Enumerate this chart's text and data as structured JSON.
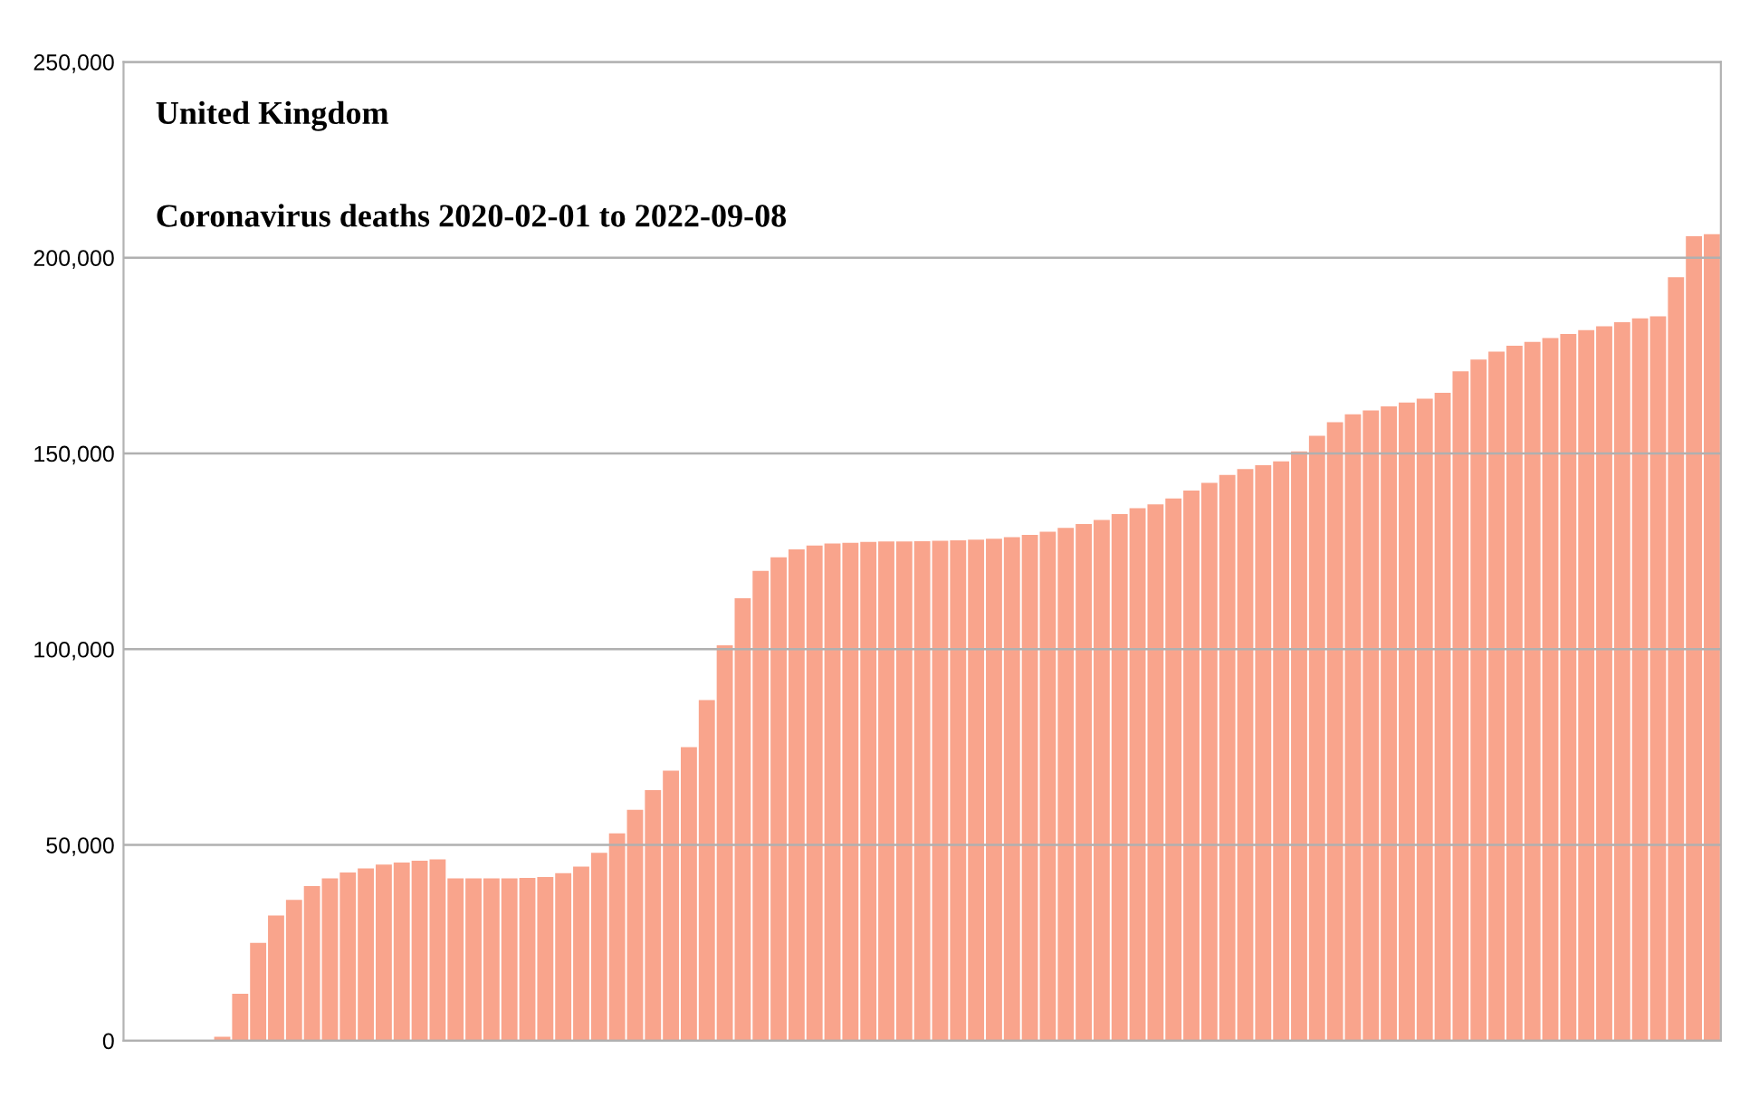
{
  "chart_data": {
    "type": "bar",
    "title": "United Kingdom",
    "subtitle": "Coronavirus deaths 2020-02-01 to 2022-09-08",
    "categories": [
      null,
      null,
      null,
      null,
      null,
      null,
      null,
      null,
      null,
      null,
      null,
      null,
      null,
      null,
      null,
      null,
      null,
      null,
      null,
      null,
      null,
      null,
      null,
      null,
      null,
      null,
      null,
      null,
      null,
      null,
      null,
      null,
      null,
      null,
      null,
      null,
      null,
      null,
      null,
      null,
      null,
      null,
      null,
      null,
      null,
      null,
      null,
      null,
      null,
      null,
      null,
      null,
      null,
      null,
      null,
      null,
      null,
      null,
      null,
      null,
      null,
      null,
      null,
      null,
      null,
      null,
      null,
      null,
      null,
      null,
      null,
      null,
      null,
      null,
      null,
      null,
      null,
      null,
      null,
      null,
      null,
      null,
      null,
      null,
      null,
      null,
      null,
      null,
      null
    ],
    "values": [
      0,
      0,
      0,
      0,
      0,
      1000,
      12000,
      25000,
      32000,
      36000,
      39500,
      41500,
      43000,
      44000,
      45000,
      45500,
      46000,
      46300,
      41500,
      41500,
      41500,
      41500,
      41600,
      41800,
      42800,
      44500,
      48000,
      53000,
      59000,
      64000,
      69000,
      75000,
      87000,
      101000,
      113000,
      120000,
      123500,
      125500,
      126500,
      127000,
      127200,
      127400,
      127500,
      127500,
      127600,
      127700,
      127800,
      128000,
      128200,
      128600,
      129200,
      130000,
      131000,
      132000,
      133000,
      134500,
      136000,
      137000,
      138500,
      140500,
      142500,
      144500,
      146000,
      147000,
      148000,
      150500,
      154500,
      158000,
      160000,
      161000,
      162000,
      163000,
      164000,
      165500,
      171000,
      174000,
      176000,
      177500,
      178500,
      179500,
      180500,
      181500,
      182500,
      183500,
      184500,
      185000,
      195000,
      205500,
      206000
    ],
    "color": "#f9a48c",
    "ylim": [
      0,
      250000
    ],
    "yticks": [
      0,
      {
        "value": 50000,
        "label": "50,000"
      },
      {
        "value": 100000,
        "label": "100,000"
      },
      {
        "value": 150000,
        "label": "150,000"
      },
      {
        "value": 200000,
        "label": "200,000"
      },
      {
        "value": 250000,
        "label": "250,000"
      }
    ],
    "grid": "y",
    "tick_labels": "y"
  }
}
